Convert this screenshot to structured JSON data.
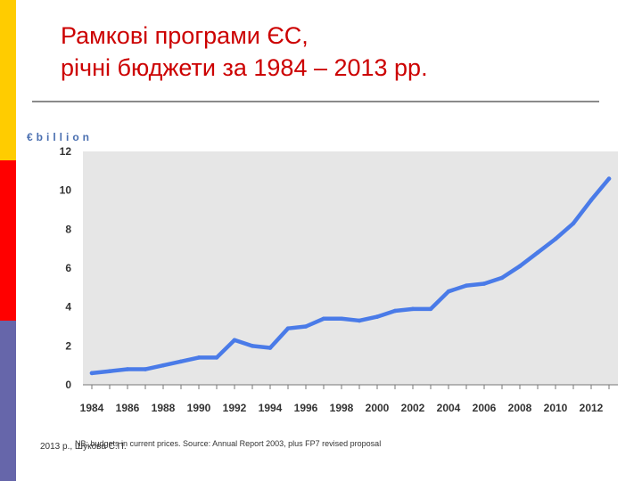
{
  "slide": {
    "title_line1": "Рамкові програми ЄС,",
    "title_line2": "річні бюджети за 1984 – 2013 рр.",
    "author": "2013 р., Шукова С.П.",
    "footnote": "NB: budgets in current prices. Source: Annual Report 2003, plus FP7 revised proposal",
    "colors": {
      "title": "#cc0000",
      "line": "#4a7be8",
      "plot_bg": "#e6e6e6",
      "unit": "#4a6fb0"
    }
  },
  "chart_data": {
    "type": "line",
    "title": "",
    "xlabel": "",
    "ylabel": "€billion",
    "xlim": [
      1983.5,
      2013.5
    ],
    "ylim": [
      0,
      12
    ],
    "x_ticks": [
      1984,
      1986,
      1988,
      1990,
      1992,
      1994,
      1996,
      1998,
      2000,
      2002,
      2004,
      2006,
      2008,
      2010,
      2012
    ],
    "y_ticks": [
      0,
      2,
      4,
      6,
      8,
      10,
      12
    ],
    "grid": false,
    "legend": "none",
    "series": [
      {
        "x": [
          1984,
          1985,
          1986,
          1987,
          1988,
          1989,
          1990,
          1991,
          1992,
          1993,
          1994,
          1995,
          1996,
          1997,
          1998,
          1999,
          2000,
          2001,
          2002,
          2003,
          2004,
          2005,
          2006,
          2007,
          2008,
          2009,
          2010,
          2011,
          2012,
          2013
        ],
        "values": [
          0.6,
          0.7,
          0.8,
          0.8,
          1.0,
          1.2,
          1.4,
          1.4,
          2.3,
          2.0,
          1.9,
          2.9,
          3.0,
          3.4,
          3.4,
          3.3,
          3.5,
          3.8,
          3.9,
          3.9,
          4.8,
          5.1,
          5.2,
          5.5,
          6.1,
          6.8,
          7.5,
          8.3,
          9.5,
          10.6
        ]
      }
    ]
  }
}
